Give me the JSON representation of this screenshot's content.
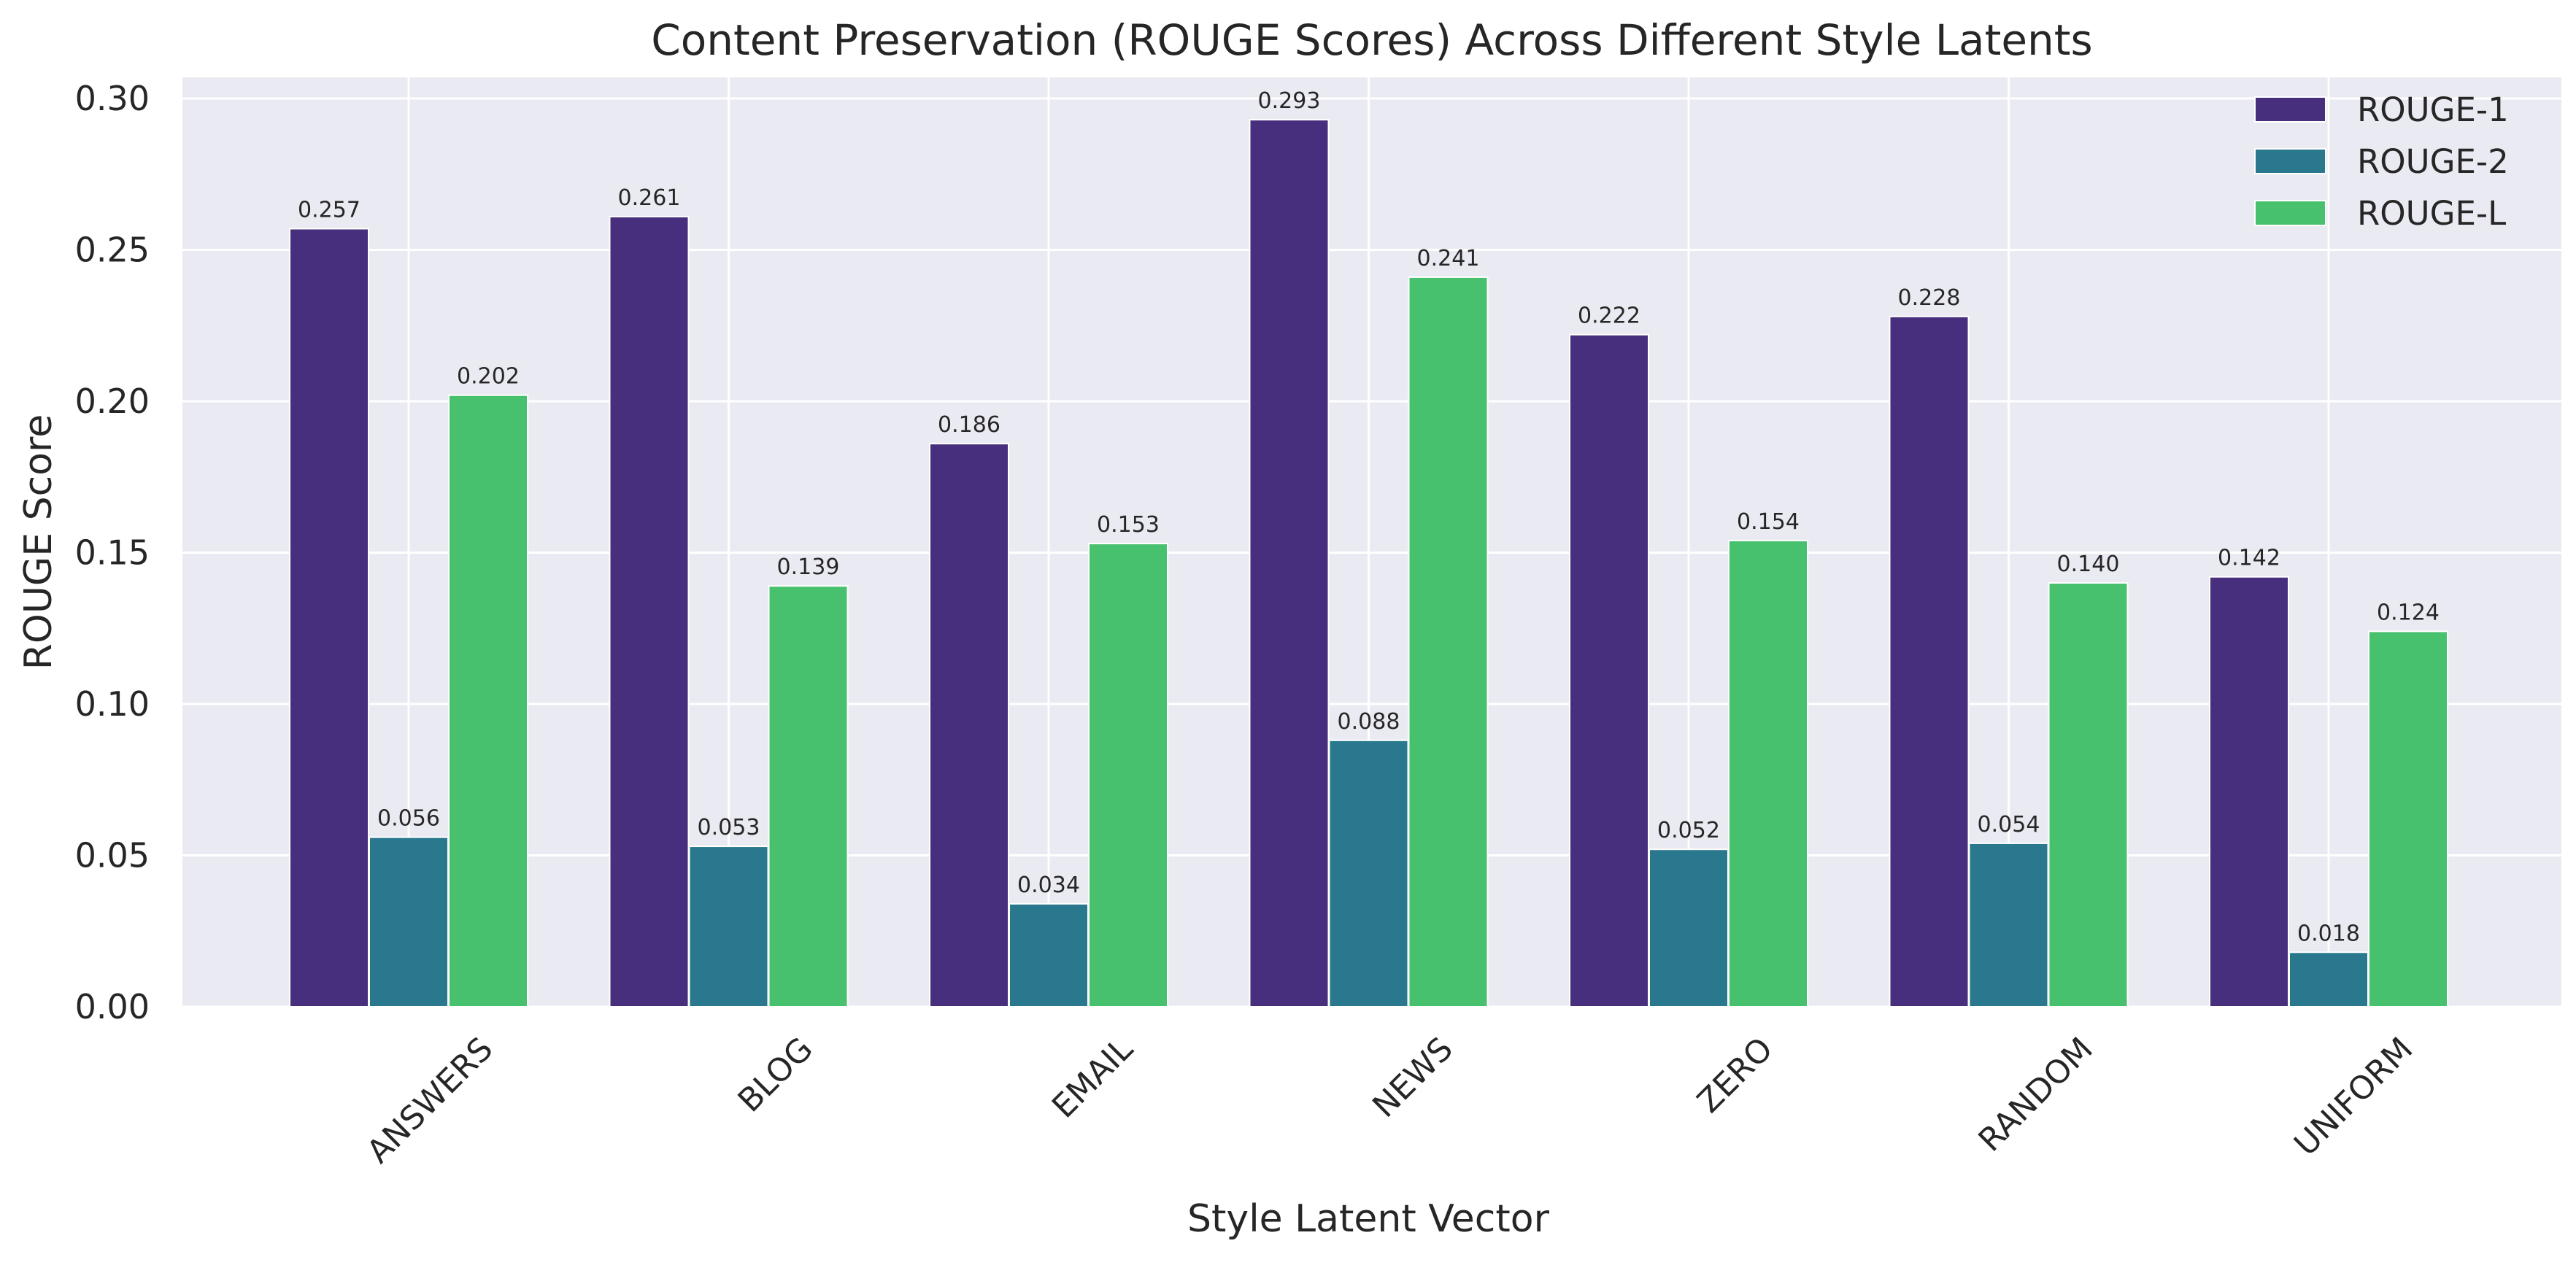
{
  "chart_data": {
    "type": "bar",
    "title": "Content Preservation (ROUGE Scores) Across Different Style Latents",
    "xlabel": "Style Latent Vector",
    "ylabel": "ROUGE Score",
    "categories": [
      "ANSWERS",
      "BLOG",
      "EMAIL",
      "NEWS",
      "ZERO",
      "RANDOM",
      "UNIFORM"
    ],
    "series": [
      {
        "name": "ROUGE-1",
        "color": "#472f7d",
        "values": [
          0.257,
          0.261,
          0.186,
          0.293,
          0.222,
          0.228,
          0.142
        ],
        "labels": [
          "0.257",
          "0.261",
          "0.186",
          "0.293",
          "0.222",
          "0.228",
          "0.142"
        ]
      },
      {
        "name": "ROUGE-2",
        "color": "#29788e",
        "values": [
          0.056,
          0.053,
          0.034,
          0.088,
          0.052,
          0.054,
          0.018
        ],
        "labels": [
          "0.056",
          "0.053",
          "0.034",
          "0.088",
          "0.052",
          "0.054",
          "0.018"
        ]
      },
      {
        "name": "ROUGE-L",
        "color": "#48c16e",
        "values": [
          0.202,
          0.139,
          0.153,
          0.241,
          0.154,
          0.14,
          0.124
        ],
        "labels": [
          "0.202",
          "0.139",
          "0.153",
          "0.241",
          "0.154",
          "0.140",
          "0.124"
        ]
      }
    ],
    "ylim": [
      0,
      0.307
    ],
    "yticks": [
      0.0,
      0.05,
      0.1,
      0.15,
      0.2,
      0.25,
      0.3
    ],
    "ytick_labels": [
      "0.00",
      "0.05",
      "0.10",
      "0.15",
      "0.20",
      "0.25",
      "0.30"
    ],
    "grid": true,
    "legend_position": "top-right",
    "background_color": "#eaeaf2"
  }
}
